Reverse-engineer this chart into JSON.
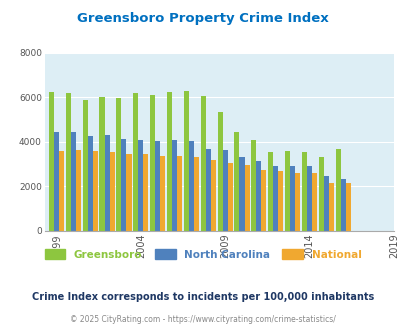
{
  "title": "Greensboro Property Crime Index",
  "color_greensboro": "#8dc63f",
  "color_nc": "#4f81bd",
  "color_national": "#f0a830",
  "bg_color": "#ddeef5",
  "title_color": "#0070c0",
  "subtitle_color": "#1f3864",
  "footer_color": "#888888",
  "ylim": [
    0,
    8000
  ],
  "yticks": [
    0,
    2000,
    4000,
    6000,
    8000
  ],
  "xtick_years": [
    1999,
    2004,
    2009,
    2014,
    2019
  ],
  "subtitle": "Crime Index corresponds to incidents per 100,000 inhabitants",
  "footer": "© 2025 CityRating.com - https://www.cityrating.com/crime-statistics/",
  "legend_labels": [
    "Greensboro",
    "North Carolina",
    "National"
  ],
  "gbr": [
    6250,
    6200,
    5900,
    6000,
    5950,
    6200,
    6100,
    6250,
    6300,
    6050,
    5350,
    4450,
    4100,
    3560,
    3600,
    3550,
    3300,
    3700
  ],
  "nc": [
    4450,
    4450,
    4250,
    4300,
    4150,
    4100,
    4050,
    4100,
    4050,
    3700,
    3650,
    3300,
    3150,
    2900,
    2900,
    2900,
    2450,
    2350
  ],
  "nat": [
    3600,
    3650,
    3600,
    3550,
    3450,
    3450,
    3350,
    3350,
    3300,
    3200,
    3050,
    2950,
    2750,
    2700,
    2600,
    2600,
    2150,
    2150
  ],
  "start_year": 1999,
  "n_years": 18
}
